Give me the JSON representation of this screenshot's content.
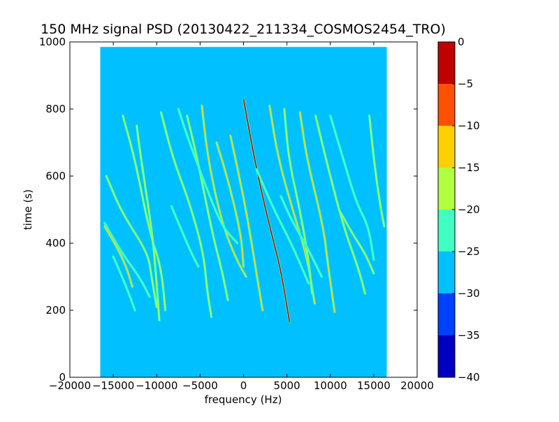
{
  "chart_data": {
    "type": "heatmap",
    "title": "150 MHz signal PSD (20130422_211334_COSMOS2454_TRO)",
    "xlabel": "frequency (Hz)",
    "ylabel": "time (s)",
    "xlim": [
      -20000,
      20000
    ],
    "ylim": [
      0,
      1000
    ],
    "xticks": [
      -20000,
      -15000,
      -10000,
      -5000,
      0,
      5000,
      10000,
      15000,
      20000
    ],
    "xtick_labels": [
      "−20000",
      "−15000",
      "−10000",
      "−5000",
      "0",
      "5000",
      "10000",
      "15000",
      "20000"
    ],
    "yticks": [
      0,
      200,
      400,
      600,
      800,
      1000
    ],
    "ytick_labels": [
      "0",
      "200",
      "400",
      "600",
      "800",
      "1000"
    ],
    "data_extent": {
      "x": [
        -16500,
        16500
      ],
      "y": [
        0,
        985
      ]
    },
    "background_level": -27.5,
    "background_color": "#00c0ff",
    "colorbar": {
      "range": [
        -40,
        0
      ],
      "levels": [
        -40,
        -35,
        -30,
        -25,
        -20,
        -15,
        -10,
        -5,
        0
      ],
      "tick_labels": [
        "−40",
        "−35",
        "−30",
        "−25",
        "−20",
        "−15",
        "−10",
        "−5",
        "0"
      ],
      "colors": [
        "#0000c0",
        "#0040ff",
        "#00c0ff",
        "#40ffc0",
        "#b0ff40",
        "#ffd000",
        "#ff5000",
        "#c00000"
      ]
    },
    "traces": [
      {
        "level": -2,
        "points": [
          [
            0,
            830
          ],
          [
            900,
            700
          ],
          [
            2000,
            560
          ],
          [
            3300,
            420
          ],
          [
            4300,
            320
          ],
          [
            5300,
            165
          ]
        ]
      },
      {
        "level": -12,
        "points": [
          [
            -1500,
            720
          ],
          [
            -500,
            600
          ],
          [
            500,
            470
          ],
          [
            1300,
            340
          ],
          [
            2200,
            200
          ]
        ]
      },
      {
        "level": -12,
        "points": [
          [
            -3100,
            700
          ],
          [
            -1800,
            590
          ],
          [
            -300,
            430
          ],
          [
            0,
            330
          ]
        ]
      },
      {
        "level": -12,
        "points": [
          [
            -4800,
            810
          ],
          [
            -4100,
            650
          ],
          [
            -2500,
            460
          ],
          [
            -800,
            350
          ],
          [
            300,
            300
          ]
        ]
      },
      {
        "level": -17,
        "points": [
          [
            -6500,
            780
          ],
          [
            -5300,
            650
          ],
          [
            -3600,
            430
          ],
          [
            -2500,
            320
          ],
          [
            -1800,
            230
          ]
        ]
      },
      {
        "level": -17,
        "points": [
          [
            -9500,
            790
          ],
          [
            -8100,
            650
          ],
          [
            -6200,
            520
          ],
          [
            -4600,
            370
          ],
          [
            -4200,
            260
          ],
          [
            -3700,
            180
          ]
        ]
      },
      {
        "level": -22,
        "points": [
          [
            -7500,
            800
          ],
          [
            -6500,
            720
          ],
          [
            -4500,
            580
          ],
          [
            -2500,
            450
          ],
          [
            -700,
            400
          ]
        ]
      },
      {
        "level": -17,
        "points": [
          [
            -13900,
            780
          ],
          [
            -12500,
            650
          ],
          [
            -10800,
            430
          ],
          [
            -9500,
            330
          ],
          [
            -9000,
            200
          ]
        ]
      },
      {
        "level": -17,
        "points": [
          [
            -12300,
            750
          ],
          [
            -11800,
            650
          ],
          [
            -10500,
            430
          ],
          [
            -10000,
            280
          ],
          [
            -9700,
            170
          ]
        ]
      },
      {
        "level": -17,
        "points": [
          [
            -15800,
            600
          ],
          [
            -14000,
            490
          ],
          [
            -11000,
            370
          ],
          [
            -10600,
            300
          ],
          [
            -10000,
            210
          ]
        ]
      },
      {
        "level": -22,
        "points": [
          [
            -16000,
            460
          ],
          [
            -14000,
            370
          ],
          [
            -12000,
            300
          ],
          [
            -10800,
            240
          ]
        ]
      },
      {
        "level": -12,
        "points": [
          [
            -16000,
            450
          ],
          [
            -14600,
            390
          ],
          [
            -13500,
            330
          ],
          [
            -12800,
            270
          ]
        ]
      },
      {
        "level": -22,
        "points": [
          [
            -15000,
            360
          ],
          [
            -13500,
            270
          ],
          [
            -12500,
            200
          ]
        ]
      },
      {
        "level": -22,
        "points": [
          [
            -8300,
            510
          ],
          [
            -7000,
            430
          ],
          [
            -6000,
            370
          ],
          [
            -5200,
            330
          ]
        ]
      },
      {
        "level": -12,
        "points": [
          [
            3000,
            810
          ],
          [
            4000,
            650
          ],
          [
            6000,
            470
          ],
          [
            7300,
            360
          ],
          [
            8200,
            220
          ]
        ]
      },
      {
        "level": -17,
        "points": [
          [
            4700,
            800
          ],
          [
            5200,
            650
          ],
          [
            6500,
            500
          ],
          [
            7500,
            350
          ],
          [
            7900,
            250
          ]
        ]
      },
      {
        "level": -12,
        "points": [
          [
            6500,
            790
          ],
          [
            7300,
            650
          ],
          [
            9200,
            450
          ],
          [
            9800,
            320
          ],
          [
            10500,
            195
          ]
        ]
      },
      {
        "level": -17,
        "points": [
          [
            8300,
            780
          ],
          [
            9500,
            650
          ],
          [
            11500,
            450
          ],
          [
            13300,
            320
          ],
          [
            14000,
            250
          ]
        ]
      },
      {
        "level": -22,
        "points": [
          [
            10000,
            780
          ],
          [
            11500,
            650
          ],
          [
            13000,
            520
          ],
          [
            14400,
            450
          ],
          [
            15000,
            350
          ]
        ]
      },
      {
        "level": -17,
        "points": [
          [
            14500,
            780
          ],
          [
            15000,
            650
          ],
          [
            15700,
            520
          ],
          [
            16200,
            450
          ]
        ]
      },
      {
        "level": -22,
        "points": [
          [
            4300,
            540
          ],
          [
            5500,
            470
          ],
          [
            7500,
            380
          ],
          [
            9000,
            300
          ]
        ]
      },
      {
        "level": -22,
        "points": [
          [
            1500,
            620
          ],
          [
            3500,
            500
          ],
          [
            5500,
            400
          ],
          [
            7500,
            280
          ]
        ]
      },
      {
        "level": -17,
        "points": [
          [
            11000,
            500
          ],
          [
            12500,
            430
          ],
          [
            14000,
            370
          ],
          [
            15000,
            310
          ]
        ]
      }
    ]
  }
}
